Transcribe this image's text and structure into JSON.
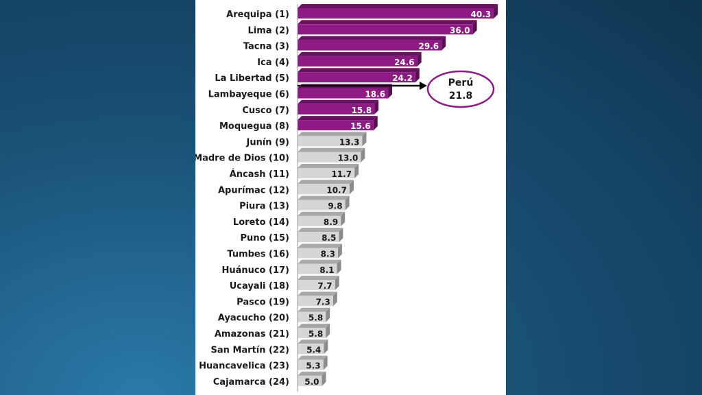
{
  "chart_data": {
    "type": "bar",
    "orientation": "horizontal",
    "categories": [
      "Arequipa (1)",
      "Lima (2)",
      "Tacna (3)",
      "Ica (4)",
      "La Libertad (5)",
      "Lambayeque (6)",
      "Cusco (7)",
      "Moquegua (8)",
      "Junín (9)",
      "Madre de Dios (10)",
      "Áncash (11)",
      "Apurímac (12)",
      "Piura (13)",
      "Loreto (14)",
      "Puno (15)",
      "Tumbes (16)",
      "Huánuco (17)",
      "Ucayali (18)",
      "Pasco (19)",
      "Ayacucho (20)",
      "Amazonas (21)",
      "San Martín (22)",
      "Huancavelica (23)",
      "Cajamarca (24)"
    ],
    "values": [
      40.3,
      36.0,
      29.6,
      24.6,
      24.2,
      18.6,
      15.8,
      15.6,
      13.3,
      13.0,
      11.7,
      10.7,
      9.8,
      8.9,
      8.5,
      8.3,
      8.1,
      7.7,
      7.3,
      5.8,
      5.8,
      5.4,
      5.3,
      5.0
    ],
    "value_labels": [
      "40.3",
      "36.0",
      "29.6",
      "24.6",
      "24.2",
      "18.6",
      "15.8",
      "15.6",
      "13.3",
      "13.0",
      "11.7",
      "10.7",
      "9.8",
      "8.9",
      "8.5",
      "8.3",
      "8.1",
      "7.7",
      "7.3",
      "5.8",
      "5.8",
      "5.4",
      "5.3",
      "5.0"
    ],
    "highlight_count": 8,
    "xlim": [
      0,
      42
    ],
    "grid": false,
    "reference": {
      "label": "Perú",
      "value": 21.8,
      "value_label": "21.8"
    },
    "colors": {
      "highlight_front": "#8e1a84",
      "highlight_top": "#6a1262",
      "highlight_side": "#5a0f53",
      "normal_front": "#d6d6d6",
      "normal_top": "#a8a8a8",
      "normal_side": "#8c8c8c",
      "ellipse": "#8e1a84"
    }
  }
}
